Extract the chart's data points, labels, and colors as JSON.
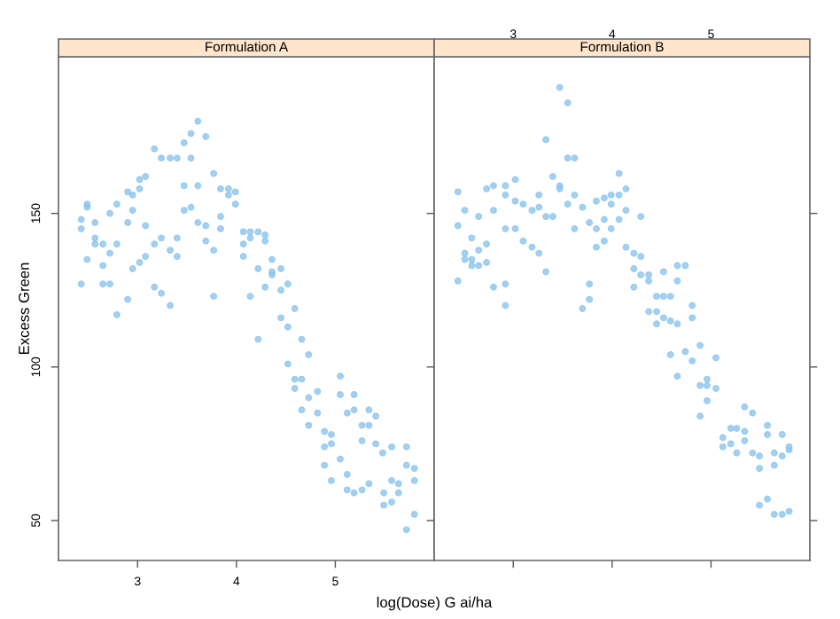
{
  "chart_data": [
    {
      "type": "scatter",
      "title": "Formulation A",
      "xlabel": "log(Dose) G ai/ha",
      "ylabel": "Excess Green",
      "marker": "circle",
      "grid": false,
      "legend": false,
      "xlim": [
        2.2,
        6.0
      ],
      "ylim": [
        37,
        201
      ],
      "xticks": [
        3,
        4,
        5
      ],
      "yticks": [
        50,
        100,
        150
      ],
      "series": [
        {
          "color": "#8cc4ec",
          "x": [
            2.43,
            2.43,
            2.43,
            2.49,
            2.49,
            2.49,
            2.57,
            2.57,
            2.57,
            2.65,
            2.65,
            2.65,
            2.72,
            2.72,
            2.72,
            2.79,
            2.79,
            2.79,
            2.9,
            2.9,
            2.9,
            2.95,
            2.95,
            2.95,
            3.02,
            3.02,
            3.02,
            3.08,
            3.08,
            3.08,
            3.17,
            3.17,
            3.17,
            3.24,
            3.24,
            3.24,
            3.33,
            3.33,
            3.33,
            3.4,
            3.4,
            3.4,
            3.47,
            3.47,
            3.47,
            3.54,
            3.54,
            3.54,
            3.61,
            3.61,
            3.61,
            3.69,
            3.69,
            3.69,
            3.77,
            3.77,
            3.77,
            3.84,
            3.84,
            3.84,
            3.92,
            3.92,
            3.99,
            3.99,
            4.07,
            4.07,
            4.07,
            4.14,
            4.14,
            4.14,
            4.22,
            4.22,
            4.22,
            4.29,
            4.29,
            4.29,
            4.36,
            4.36,
            4.36,
            4.45,
            4.45,
            4.45,
            4.52,
            4.52,
            4.52,
            4.59,
            4.59,
            4.59,
            4.66,
            4.66,
            4.66,
            4.73,
            4.73,
            4.73,
            4.82,
            4.82,
            4.89,
            4.89,
            4.89,
            4.96,
            4.96,
            4.96,
            5.05,
            5.05,
            5.05,
            5.12,
            5.12,
            5.12,
            5.19,
            5.19,
            5.19,
            5.27,
            5.27,
            5.27,
            5.34,
            5.34,
            5.34,
            5.41,
            5.41,
            5.48,
            5.49,
            5.49,
            5.57,
            5.57,
            5.57,
            5.64,
            5.64,
            5.72,
            5.72,
            5.72,
            5.8,
            5.8,
            5.8
          ],
          "values": [
            148,
            145,
            127,
            153,
            152,
            135,
            147,
            142,
            140,
            140,
            133,
            127,
            150,
            137,
            127,
            153,
            140,
            117,
            157,
            147,
            122,
            156,
            151,
            132,
            161,
            158,
            134,
            162,
            146,
            136,
            171,
            140,
            126,
            168,
            142,
            124,
            168,
            138,
            120,
            168,
            142,
            136,
            173,
            159,
            151,
            176,
            168,
            152,
            180,
            159,
            147,
            175,
            146,
            141,
            163,
            138,
            123,
            158,
            149,
            145,
            158,
            156,
            157,
            153,
            144,
            140,
            136,
            144,
            142,
            123,
            144,
            132,
            109,
            143,
            141,
            126,
            135,
            131,
            130,
            132,
            125,
            116,
            127,
            113,
            101,
            119,
            96,
            93,
            109,
            96,
            86,
            104,
            90,
            81,
            92,
            85,
            79,
            74,
            68,
            78,
            75,
            63,
            97,
            91,
            70,
            85,
            65,
            60,
            91,
            86,
            59,
            81,
            76,
            60,
            86,
            81,
            62,
            84,
            75,
            72,
            59,
            55,
            74,
            63,
            56,
            62,
            59,
            74,
            68,
            47,
            67,
            63,
            52
          ]
        }
      ]
    },
    {
      "type": "scatter",
      "title": "Formulation B",
      "marker": "circle",
      "grid": false,
      "legend": false,
      "tick_labels": "x",
      "xlim": [
        2.2,
        6.0
      ],
      "ylim": [
        37,
        201
      ],
      "xticks": [
        3,
        4,
        5
      ],
      "yticks": [
        50,
        100,
        150
      ],
      "series": [
        {
          "color": "#8cc4ec",
          "x": [
            2.44,
            2.44,
            2.44,
            2.51,
            2.51,
            2.51,
            2.58,
            2.58,
            2.58,
            2.65,
            2.65,
            2.65,
            2.73,
            2.73,
            2.73,
            2.8,
            2.8,
            2.8,
            2.92,
            2.92,
            2.92,
            2.92,
            2.92,
            3.02,
            3.02,
            3.02,
            3.1,
            3.1,
            3.19,
            3.19,
            3.26,
            3.26,
            3.26,
            3.33,
            3.33,
            3.33,
            3.4,
            3.4,
            3.47,
            3.47,
            3.47,
            3.55,
            3.55,
            3.55,
            3.62,
            3.62,
            3.62,
            3.7,
            3.7,
            3.77,
            3.77,
            3.77,
            3.84,
            3.84,
            3.84,
            3.92,
            3.92,
            3.92,
            3.99,
            3.99,
            3.99,
            4.07,
            4.07,
            4.07,
            4.14,
            4.14,
            4.14,
            4.22,
            4.22,
            4.22,
            4.29,
            4.29,
            4.29,
            4.37,
            4.37,
            4.37,
            4.45,
            4.45,
            4.45,
            4.52,
            4.52,
            4.52,
            4.59,
            4.59,
            4.59,
            4.66,
            4.66,
            4.66,
            4.66,
            4.74,
            4.74,
            4.81,
            4.81,
            4.81,
            4.89,
            4.89,
            4.89,
            4.96,
            4.96,
            4.96,
            5.05,
            5.05,
            5.12,
            5.12,
            5.2,
            5.2,
            5.26,
            5.26,
            5.34,
            5.34,
            5.34,
            5.42,
            5.42,
            5.49,
            5.49,
            5.49,
            5.57,
            5.57,
            5.57,
            5.64,
            5.64,
            5.64,
            5.72,
            5.72,
            5.72,
            5.79,
            5.79,
            5.79
          ],
          "values": [
            157,
            146,
            128,
            151,
            137,
            135,
            142,
            135,
            133,
            149,
            138,
            133,
            158,
            140,
            134,
            159,
            151,
            126,
            159,
            156,
            145,
            127,
            120,
            161,
            154,
            145,
            153,
            141,
            151,
            139,
            156,
            152,
            137,
            174,
            149,
            131,
            162,
            149,
            191,
            159,
            158,
            186,
            168,
            153,
            168,
            156,
            145,
            152,
            119,
            147,
            127,
            122,
            154,
            145,
            139,
            155,
            148,
            141,
            156,
            153,
            145,
            163,
            156,
            148,
            158,
            151,
            139,
            137,
            132,
            126,
            149,
            136,
            130,
            130,
            128,
            118,
            123,
            118,
            114,
            131,
            123,
            116,
            123,
            115,
            104,
            133,
            128,
            114,
            97,
            133,
            105,
            120,
            116,
            102,
            107,
            94,
            84,
            96,
            94,
            89,
            103,
            93,
            77,
            74,
            80,
            75,
            80,
            72,
            87,
            79,
            76,
            85,
            72,
            71,
            67,
            55,
            81,
            78,
            57,
            72,
            68,
            52,
            78,
            71,
            52,
            74,
            73,
            53
          ]
        }
      ]
    }
  ]
}
